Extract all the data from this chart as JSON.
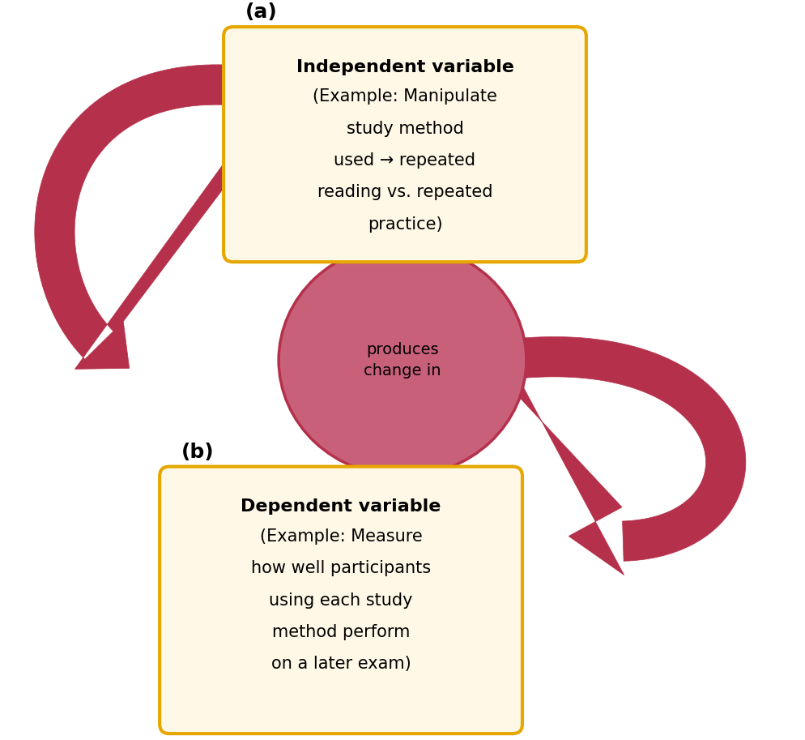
{
  "background_color": "#ffffff",
  "arrow_color": "#b5304a",
  "circle_color": "#c9607a",
  "circle_edge_color": "#b5304a",
  "box_face_color": "#fff8e7",
  "box_edge_color": "#e6a800",
  "label_a_text": "(a)",
  "label_b_text": "(b)",
  "box_top_title": "Independent variable",
  "box_top_body": "(Example: Manipulate\nstudy method\nused → repeated\nreading vs. repeated\npractice)",
  "box_bottom_title": "Dependent variable",
  "box_bottom_body": "(Example: Measure\nhow well participants\nusing each study\nmethod perform\non a later exam)",
  "circle_text": "produces\nchange in",
  "title_fontsize": 16,
  "body_fontsize": 15,
  "label_fontsize": 18,
  "circle_fontsize": 14
}
